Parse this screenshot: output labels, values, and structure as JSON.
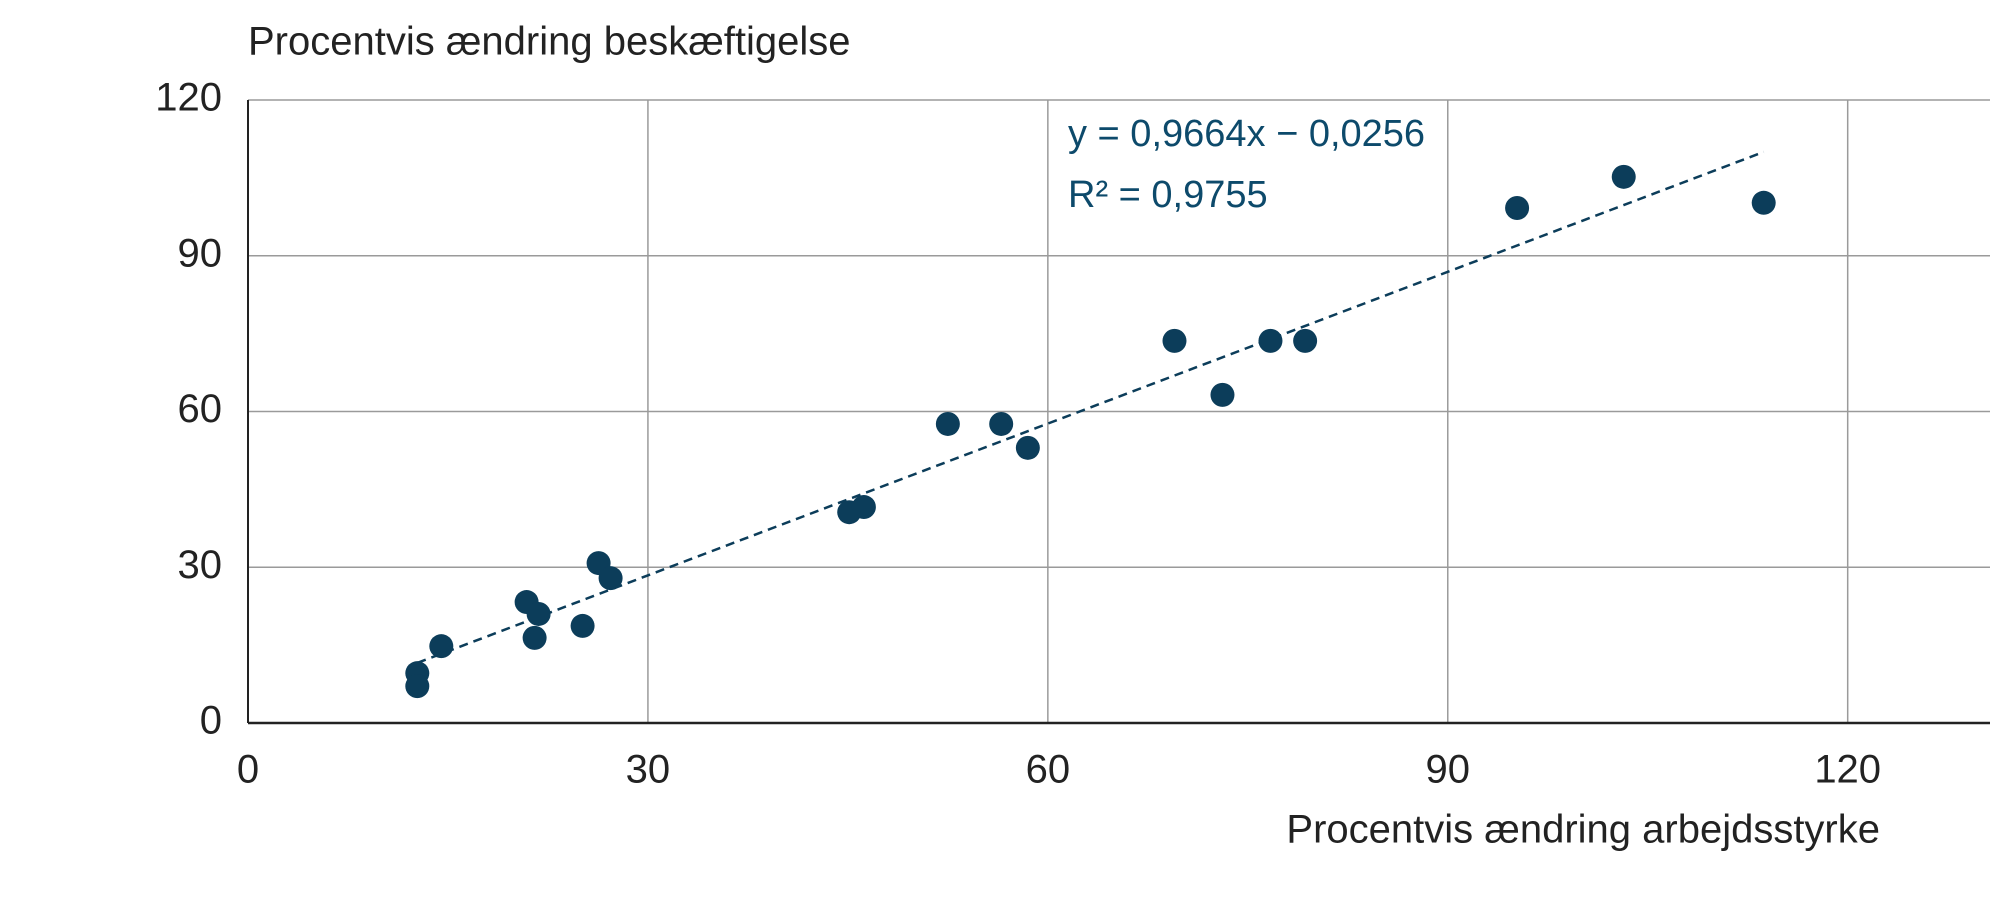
{
  "chart_data": {
    "type": "scatter",
    "y_title": "Procentvis ændring beskæftigelse",
    "x_title": "Procentvis ændring arbejdsstyrke",
    "annotations": [
      "y = 0,9664x − 0,0256",
      "R² = 0,9755"
    ],
    "x": [
      12.7,
      12.7,
      14.5,
      20.9,
      21.5,
      21.8,
      25.1,
      26.3,
      27.2,
      45.1,
      46.2,
      52.5,
      56.5,
      58.5,
      69.5,
      73.1,
      76.7,
      79.3,
      95.2,
      103.2,
      113.7
    ],
    "series": [
      {
        "color": "#0c3d5a",
        "values": [
          9.6,
          7.1,
          14.8,
          23.3,
          16.4,
          21,
          18.7,
          30.8,
          27.9,
          40.6,
          41.6,
          57.6,
          57.6,
          53,
          73.6,
          63.2,
          73.6,
          73.6,
          99.2,
          105.2,
          100.2
        ]
      }
    ],
    "trendline": true,
    "xlim": [
      0,
      130
    ],
    "xticks": [
      0,
      30,
      60,
      90,
      120
    ],
    "ylim": [
      0,
      120
    ],
    "yticks": [
      0,
      30,
      60,
      90,
      120
    ],
    "grid": true
  }
}
